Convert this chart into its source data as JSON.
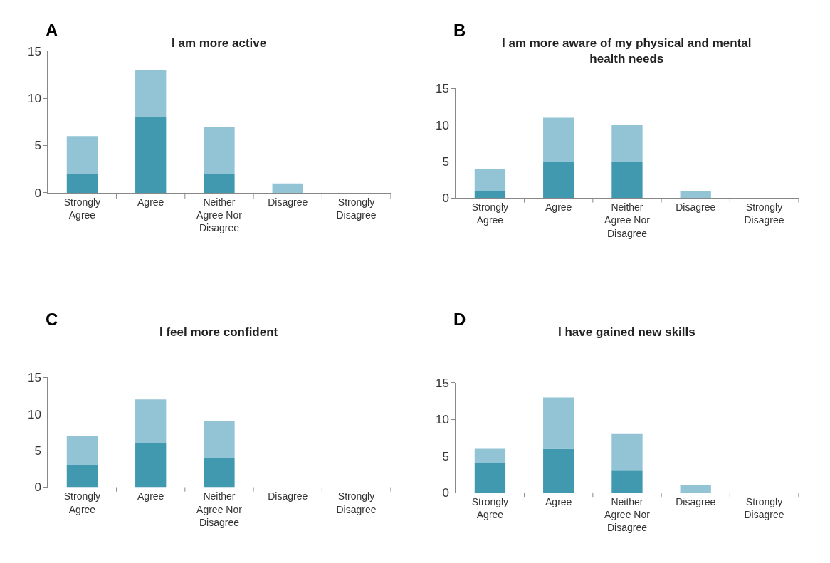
{
  "chart_data": [
    {
      "type": "bar",
      "title": "I am more active",
      "annotations": [
        "A"
      ],
      "categories": [
        "Strongly Agree",
        "Agree",
        "Neither Agree Nor Disagree",
        "Disagree",
        "Strongly Disagree"
      ],
      "stacked": true,
      "ylim": [
        0,
        15
      ],
      "yticks": [
        0,
        5,
        10,
        15
      ],
      "grid": false,
      "series": [
        {
          "color": "#4199b0",
          "values": [
            2,
            8,
            2,
            0,
            0
          ]
        },
        {
          "color": "#93c4d5",
          "values": [
            4,
            5,
            5,
            1,
            0
          ]
        }
      ]
    },
    {
      "type": "bar",
      "title": "I am more aware of my physical and mental health needs",
      "annotations": [
        "B"
      ],
      "categories": [
        "Strongly Agree",
        "Agree",
        "Neither Agree Nor Disagree",
        "Disagree",
        "Strongly Disagree"
      ],
      "stacked": true,
      "ylim": [
        0,
        15
      ],
      "yticks": [
        0,
        5,
        10,
        15
      ],
      "grid": false,
      "series": [
        {
          "color": "#4199b0",
          "values": [
            1,
            5,
            5,
            0,
            0
          ]
        },
        {
          "color": "#93c4d5",
          "values": [
            3,
            6,
            5,
            1,
            0
          ]
        }
      ]
    },
    {
      "type": "bar",
      "title": "I feel more confident",
      "annotations": [
        "C"
      ],
      "categories": [
        "Strongly Agree",
        "Agree",
        "Neither Agree Nor Disagree",
        "Disagree",
        "Strongly Disagree"
      ],
      "stacked": true,
      "ylim": [
        0,
        15
      ],
      "yticks": [
        0,
        5,
        10,
        15
      ],
      "grid": false,
      "series": [
        {
          "color": "#4199b0",
          "values": [
            3,
            6,
            4,
            0,
            0
          ]
        },
        {
          "color": "#93c4d5",
          "values": [
            4,
            6,
            5,
            0,
            0
          ]
        }
      ]
    },
    {
      "type": "bar",
      "title": "I have gained new skills",
      "annotations": [
        "D"
      ],
      "categories": [
        "Strongly Agree",
        "Agree",
        "Neither Agree Nor Disagree",
        "Disagree",
        "Strongly Disagree"
      ],
      "stacked": true,
      "ylim": [
        0,
        15
      ],
      "yticks": [
        0,
        5,
        10,
        15
      ],
      "grid": false,
      "series": [
        {
          "color": "#4199b0",
          "values": [
            4,
            6,
            3,
            0,
            0
          ]
        },
        {
          "color": "#93c4d5",
          "values": [
            2,
            7,
            5,
            1,
            0
          ]
        }
      ]
    }
  ]
}
